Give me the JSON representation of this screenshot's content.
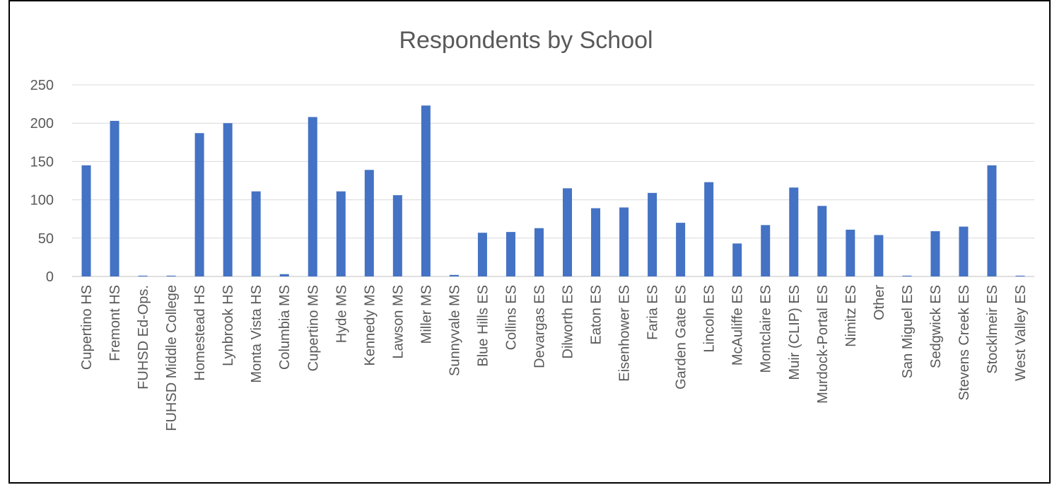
{
  "chart_data": {
    "type": "bar",
    "title": "Respondents by School",
    "xlabel": "",
    "ylabel": "",
    "ylim": [
      0,
      250
    ],
    "yticks": [
      0,
      50,
      100,
      150,
      200,
      250
    ],
    "grid": true,
    "legend": "none",
    "bar_color": "#4472C4",
    "categories": [
      "Cupertino HS",
      "Fremont HS",
      "FUHSD Ed-Ops.",
      "FUHSD Middle College",
      "Homestead HS",
      "Lynbrook HS",
      "Monta Vista HS",
      "Columbia MS",
      "Cupertino MS",
      "Hyde MS",
      "Kennedy MS",
      "Lawson MS",
      "Miller MS",
      "Sunnyvale MS",
      "Blue Hills ES",
      "Collins ES",
      "Devargas ES",
      "Dilworth ES",
      "Eaton ES",
      "Eisenhower ES",
      "Faria ES",
      "Garden Gate ES",
      "Lincoln ES",
      "McAuliffe ES",
      "Montclaire ES",
      "Muir (CLIP) ES",
      "Murdock-Portal ES",
      "Nimitz ES",
      "Other",
      "San Miguel ES",
      "Sedgwick ES",
      "Stevens Creek ES",
      "Stocklmeir ES",
      "West Valley ES"
    ],
    "values": [
      145,
      203,
      1,
      1,
      187,
      200,
      111,
      3,
      208,
      111,
      139,
      106,
      223,
      2,
      57,
      58,
      63,
      115,
      89,
      90,
      109,
      70,
      123,
      43,
      67,
      116,
      92,
      61,
      54,
      1,
      59,
      65,
      145,
      1
    ]
  }
}
